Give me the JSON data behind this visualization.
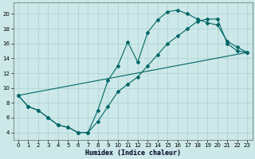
{
  "xlabel": "Humidex (Indice chaleur)",
  "background_color": "#cce8e8",
  "grid_color": "#b0d4d4",
  "line_color": "#006666",
  "xlim": [
    -0.5,
    23.5
  ],
  "ylim": [
    3.0,
    21.5
  ],
  "xticks": [
    0,
    1,
    2,
    3,
    4,
    5,
    6,
    7,
    8,
    9,
    10,
    11,
    12,
    13,
    14,
    15,
    16,
    17,
    18,
    19,
    20,
    21,
    22,
    23
  ],
  "yticks": [
    4,
    6,
    8,
    10,
    12,
    14,
    16,
    18,
    20
  ],
  "curve1_x": [
    0,
    1,
    2,
    3,
    4,
    5,
    6,
    7,
    8,
    9,
    10,
    11,
    12,
    13,
    14,
    15,
    16,
    17,
    18,
    19,
    20,
    21,
    22,
    23
  ],
  "curve1_y": [
    9.0,
    7.5,
    7.0,
    6.0,
    5.0,
    4.7,
    4.0,
    4.0,
    7.0,
    11.0,
    13.0,
    16.2,
    13.5,
    17.5,
    19.2,
    20.3,
    20.5,
    20.0,
    19.3,
    18.8,
    18.5,
    16.3,
    15.5,
    14.8
  ],
  "curve2_x": [
    0,
    1,
    2,
    3,
    4,
    5,
    6,
    7,
    8,
    9,
    10,
    11,
    12,
    13,
    14,
    15,
    16,
    17,
    18,
    19,
    20,
    21,
    22,
    23
  ],
  "curve2_y": [
    9.0,
    7.5,
    7.0,
    6.0,
    5.0,
    4.7,
    4.0,
    4.0,
    5.5,
    7.5,
    9.5,
    10.5,
    11.5,
    13.0,
    14.5,
    16.0,
    17.0,
    18.0,
    19.0,
    19.3,
    19.3,
    16.0,
    15.0,
    14.8
  ],
  "line3_x": [
    0,
    23
  ],
  "line3_y": [
    9.0,
    14.8
  ],
  "xlabel_fontsize": 6,
  "tick_fontsize": 5
}
